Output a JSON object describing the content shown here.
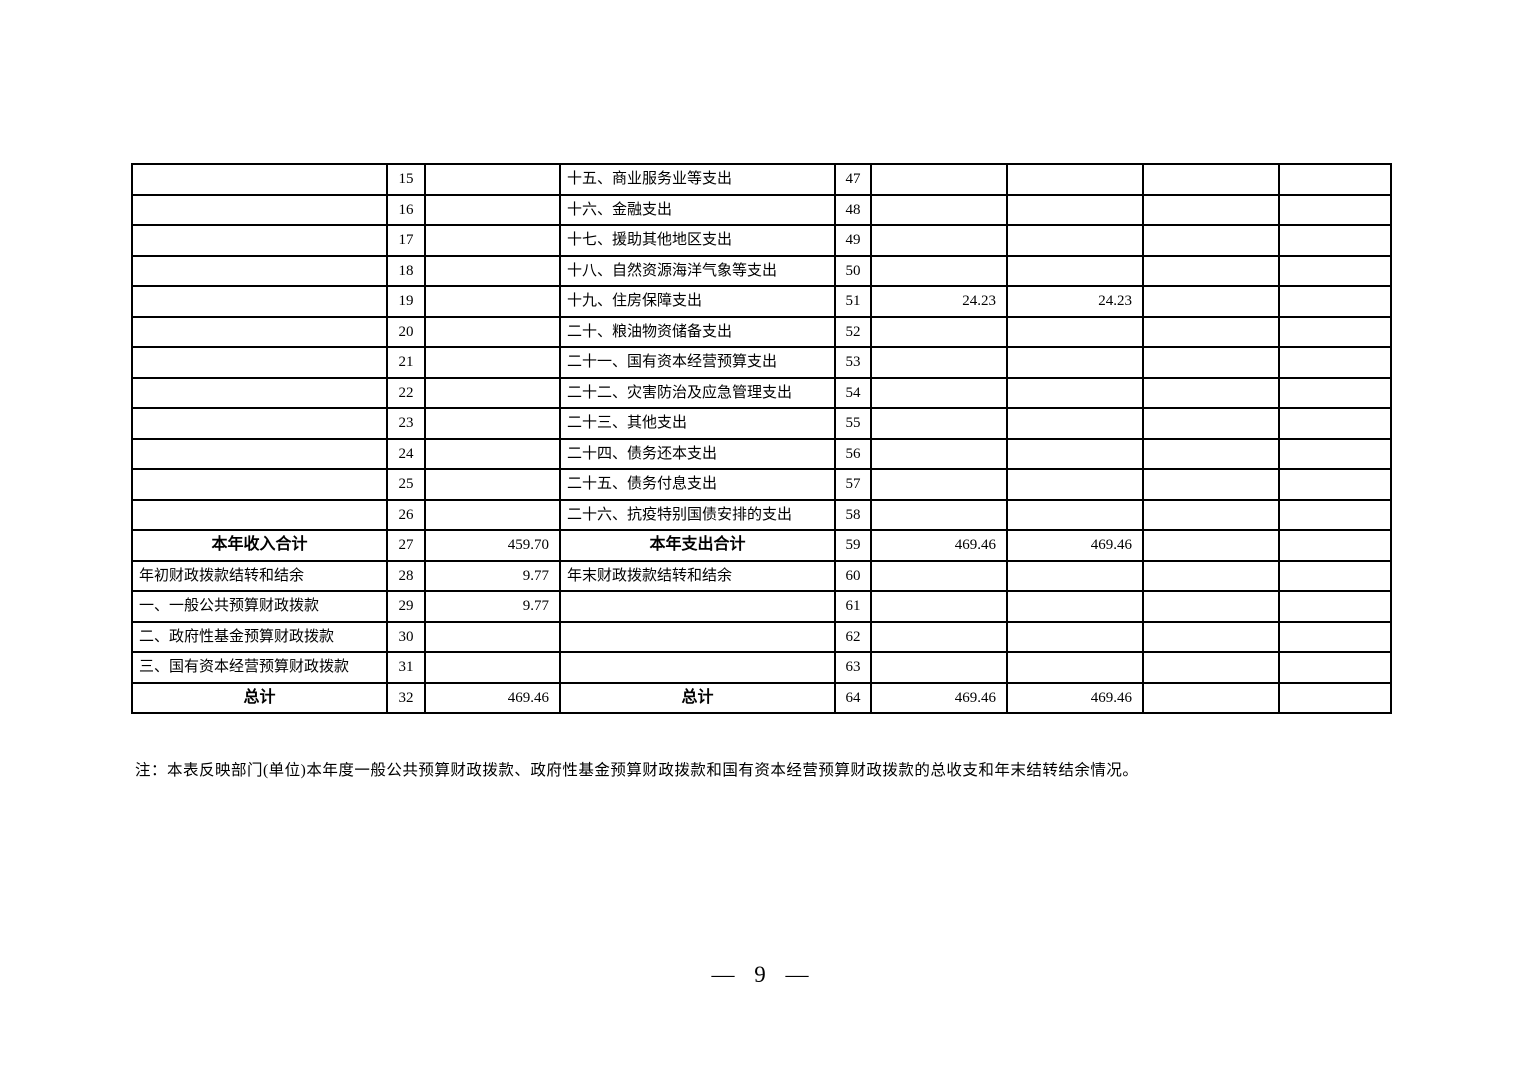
{
  "document": {
    "note": "注：本表反映部门(单位)本年度一般公共预算财政拨款、政府性基金预算财政拨款和国有资本经营预算财政拨款的总收支和年末结转结余情况。",
    "page_number": "— 9 —"
  },
  "table": {
    "columns": [
      "left_label",
      "left_num",
      "left_amount",
      "right_label",
      "right_num",
      "amount1",
      "amount2",
      "amount3",
      "amount4"
    ],
    "rows": [
      {
        "left_label": "",
        "left_num": "15",
        "left_amount": "",
        "right_label": "十五、商业服务业等支出",
        "right_num": "47",
        "amount1": "",
        "amount2": "",
        "amount3": "",
        "amount4": "",
        "emphasis": false
      },
      {
        "left_label": "",
        "left_num": "16",
        "left_amount": "",
        "right_label": "十六、金融支出",
        "right_num": "48",
        "amount1": "",
        "amount2": "",
        "amount3": "",
        "amount4": "",
        "emphasis": false
      },
      {
        "left_label": "",
        "left_num": "17",
        "left_amount": "",
        "right_label": "十七、援助其他地区支出",
        "right_num": "49",
        "amount1": "",
        "amount2": "",
        "amount3": "",
        "amount4": "",
        "emphasis": false
      },
      {
        "left_label": "",
        "left_num": "18",
        "left_amount": "",
        "right_label": "十八、自然资源海洋气象等支出",
        "right_num": "50",
        "amount1": "",
        "amount2": "",
        "amount3": "",
        "amount4": "",
        "emphasis": false
      },
      {
        "left_label": "",
        "left_num": "19",
        "left_amount": "",
        "right_label": "十九、住房保障支出",
        "right_num": "51",
        "amount1": "24.23",
        "amount2": "24.23",
        "amount3": "",
        "amount4": "",
        "emphasis": false
      },
      {
        "left_label": "",
        "left_num": "20",
        "left_amount": "",
        "right_label": "二十、粮油物资储备支出",
        "right_num": "52",
        "amount1": "",
        "amount2": "",
        "amount3": "",
        "amount4": "",
        "emphasis": false
      },
      {
        "left_label": "",
        "left_num": "21",
        "left_amount": "",
        "right_label": "二十一、国有资本经营预算支出",
        "right_num": "53",
        "amount1": "",
        "amount2": "",
        "amount3": "",
        "amount4": "",
        "emphasis": false
      },
      {
        "left_label": "",
        "left_num": "22",
        "left_amount": "",
        "right_label": "二十二、灾害防治及应急管理支出",
        "right_num": "54",
        "amount1": "",
        "amount2": "",
        "amount3": "",
        "amount4": "",
        "emphasis": false
      },
      {
        "left_label": "",
        "left_num": "23",
        "left_amount": "",
        "right_label": "二十三、其他支出",
        "right_num": "55",
        "amount1": "",
        "amount2": "",
        "amount3": "",
        "amount4": "",
        "emphasis": false
      },
      {
        "left_label": "",
        "left_num": "24",
        "left_amount": "",
        "right_label": "二十四、债务还本支出",
        "right_num": "56",
        "amount1": "",
        "amount2": "",
        "amount3": "",
        "amount4": "",
        "emphasis": false
      },
      {
        "left_label": "",
        "left_num": "25",
        "left_amount": "",
        "right_label": "二十五、债务付息支出",
        "right_num": "57",
        "amount1": "",
        "amount2": "",
        "amount3": "",
        "amount4": "",
        "emphasis": false
      },
      {
        "left_label": "",
        "left_num": "26",
        "left_amount": "",
        "right_label": "二十六、抗疫特别国债安排的支出",
        "right_num": "58",
        "amount1": "",
        "amount2": "",
        "amount3": "",
        "amount4": "",
        "emphasis": false
      },
      {
        "left_label": "本年收入合计",
        "left_num": "27",
        "left_amount": "459.70",
        "right_label": "本年支出合计",
        "right_num": "59",
        "amount1": "469.46",
        "amount2": "469.46",
        "amount3": "",
        "amount4": "",
        "emphasis": true
      },
      {
        "left_label": "年初财政拨款结转和结余",
        "left_num": "28",
        "left_amount": "9.77",
        "right_label": "年末财政拨款结转和结余",
        "right_num": "60",
        "amount1": "",
        "amount2": "",
        "amount3": "",
        "amount4": "",
        "emphasis": false
      },
      {
        "left_label": "一、一般公共预算财政拨款",
        "left_num": "29",
        "left_amount": "9.77",
        "right_label": "",
        "right_num": "61",
        "amount1": "",
        "amount2": "",
        "amount3": "",
        "amount4": "",
        "emphasis": false
      },
      {
        "left_label": "二、政府性基金预算财政拨款",
        "left_num": "30",
        "left_amount": "",
        "right_label": "",
        "right_num": "62",
        "amount1": "",
        "amount2": "",
        "amount3": "",
        "amount4": "",
        "emphasis": false
      },
      {
        "left_label": "三、国有资本经营预算财政拨款",
        "left_num": "31",
        "left_amount": "",
        "right_label": "",
        "right_num": "63",
        "amount1": "",
        "amount2": "",
        "amount3": "",
        "amount4": "",
        "emphasis": false
      },
      {
        "left_label": "总计",
        "left_num": "32",
        "left_amount": "469.46",
        "right_label": "总计",
        "right_num": "64",
        "amount1": "469.46",
        "amount2": "469.46",
        "amount3": "",
        "amount4": "",
        "emphasis": true
      }
    ]
  }
}
